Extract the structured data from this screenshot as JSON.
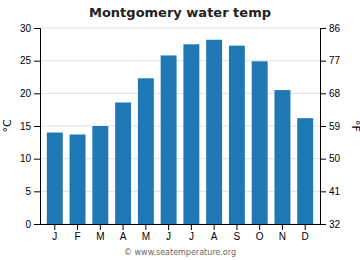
{
  "chart_data": {
    "type": "bar",
    "title": "Montgomery water temp",
    "categories": [
      "J",
      "F",
      "M",
      "A",
      "M",
      "J",
      "J",
      "A",
      "S",
      "O",
      "N",
      "D"
    ],
    "values": [
      14.0,
      13.7,
      15.0,
      18.6,
      22.3,
      25.8,
      27.5,
      28.2,
      27.3,
      24.9,
      20.5,
      16.2
    ],
    "ylim": [
      0,
      30
    ],
    "yticks": [
      0,
      5,
      10,
      15,
      20,
      25,
      30
    ],
    "y2lim": [
      32,
      86
    ],
    "y2ticks": [
      32,
      41,
      50,
      59,
      68,
      77,
      86
    ],
    "ylabel": "°C",
    "y2label": "°F",
    "grid": true,
    "annotations": [
      "© www.seatemperature.org"
    ]
  }
}
